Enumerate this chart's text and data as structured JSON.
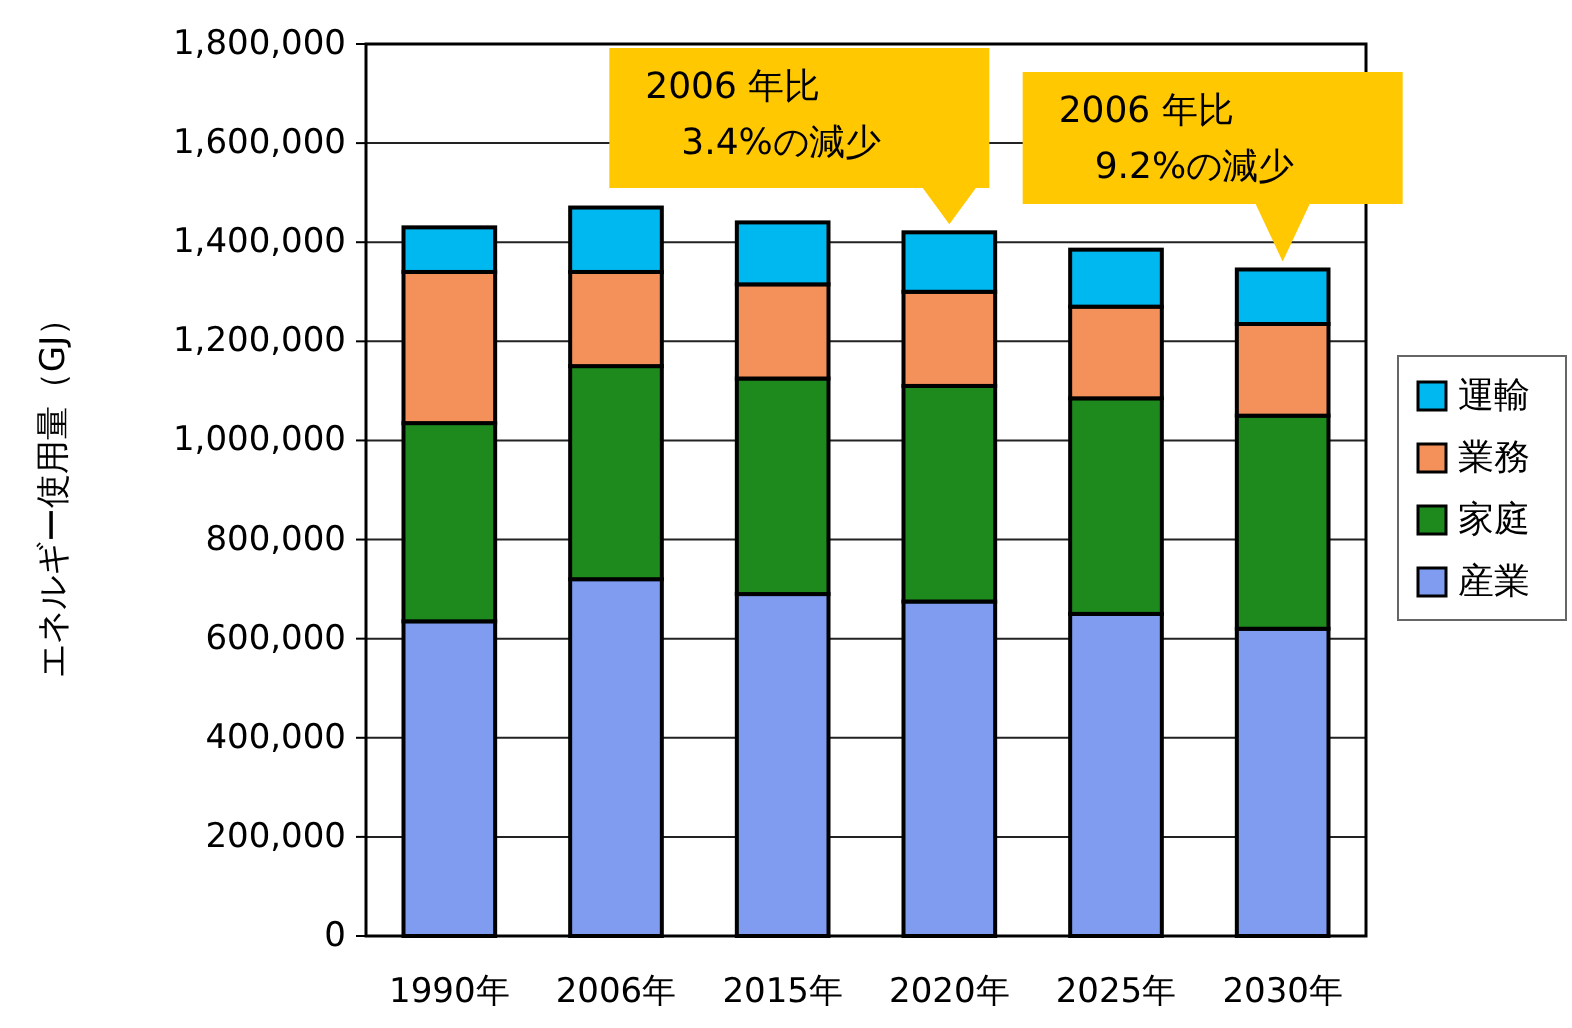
{
  "chart_data": {
    "type": "bar",
    "stacked": true,
    "ylabel": "エネルギー使用量（GJ）",
    "categories": [
      "1990年",
      "2006年",
      "2015年",
      "2020年",
      "2025年",
      "2030年"
    ],
    "series": [
      {
        "name": "産業",
        "color": "#7f9cf0",
        "values": [
          635000,
          720000,
          690000,
          675000,
          650000,
          620000
        ]
      },
      {
        "name": "家庭",
        "color": "#1e8a1e",
        "values": [
          400000,
          430000,
          435000,
          435000,
          435000,
          430000
        ]
      },
      {
        "name": "業務",
        "color": "#f4905a",
        "values": [
          305000,
          190000,
          190000,
          190000,
          185000,
          185000
        ]
      },
      {
        "name": "運輸",
        "color": "#00b8f0",
        "values": [
          90000,
          130000,
          125000,
          120000,
          115000,
          110000
        ]
      }
    ],
    "ylim": [
      0,
      1800000
    ],
    "yticks": [
      0,
      {
        "value": 200000,
        "label": "200,000"
      },
      {
        "value": 400000,
        "label": "400,000"
      },
      {
        "value": 600000,
        "label": "600,000"
      },
      {
        "value": 800000,
        "label": "800,000"
      },
      {
        "value": 1000000,
        "label": "1,000,000"
      },
      {
        "value": 1200000,
        "label": "1,200,000"
      },
      {
        "value": 1400000,
        "label": "1,400,000"
      },
      {
        "value": 1600000,
        "label": "1,600,000"
      },
      {
        "value": 1800000,
        "label": "1,800,000"
      }
    ],
    "grid": "y",
    "legend": "right",
    "annotations": [
      {
        "text": "2006 年比\n　3.4%の減少",
        "x": "2020年",
        "y": 1420000
      },
      {
        "text": "2006 年比\n　9.2%の減少",
        "x": "2030年",
        "y": 1345000
      }
    ]
  }
}
